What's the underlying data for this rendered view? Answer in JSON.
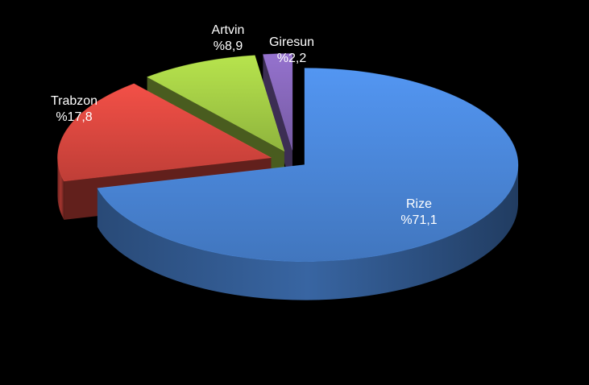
{
  "chart_data": {
    "type": "pie",
    "style": "3d-exploded",
    "categories": [
      "Rize",
      "Trabzon",
      "Artvin",
      "Giresun"
    ],
    "values": [
      71.1,
      17.8,
      8.9,
      2.2
    ],
    "value_labels": [
      "%71,1",
      "%17,8",
      "%8,9",
      "%2,2"
    ],
    "colors": [
      "#4a86d8",
      "#d9473f",
      "#a3cc45",
      "#8566b8"
    ],
    "background": "#000000",
    "legend": "none"
  }
}
